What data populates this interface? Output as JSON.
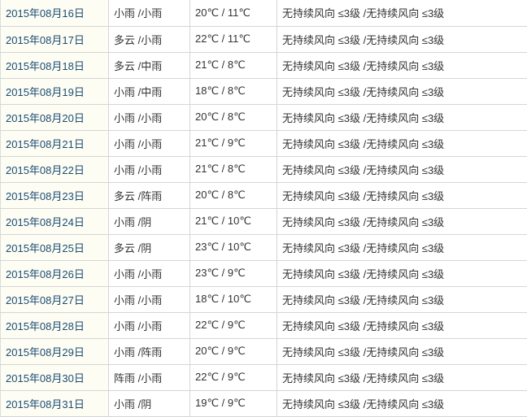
{
  "colors": {
    "date_link": "#1a4c72",
    "body_text": "#333333",
    "grid_border": "#d5d5d5",
    "date_cell_bg": "#fdfdf4"
  },
  "table": {
    "rows": [
      {
        "date": "2015年08月16日",
        "weather": "小雨 /小雨",
        "temp": "20℃ / 11℃",
        "wind": "无持续风向 ≤3级 /无持续风向 ≤3级"
      },
      {
        "date": "2015年08月17日",
        "weather": "多云 /小雨",
        "temp": "22℃ / 11℃",
        "wind": "无持续风向 ≤3级 /无持续风向 ≤3级"
      },
      {
        "date": "2015年08月18日",
        "weather": "多云 /中雨",
        "temp": "21℃ / 8℃",
        "wind": "无持续风向 ≤3级 /无持续风向 ≤3级"
      },
      {
        "date": "2015年08月19日",
        "weather": "小雨 /中雨",
        "temp": "18℃ / 8℃",
        "wind": "无持续风向 ≤3级 /无持续风向 ≤3级"
      },
      {
        "date": "2015年08月20日",
        "weather": "小雨 /小雨",
        "temp": "20℃ / 8℃",
        "wind": "无持续风向 ≤3级 /无持续风向 ≤3级"
      },
      {
        "date": "2015年08月21日",
        "weather": "小雨 /小雨",
        "temp": "21℃ / 9℃",
        "wind": "无持续风向 ≤3级 /无持续风向 ≤3级"
      },
      {
        "date": "2015年08月22日",
        "weather": "小雨 /小雨",
        "temp": "21℃ / 8℃",
        "wind": "无持续风向 ≤3级 /无持续风向 ≤3级"
      },
      {
        "date": "2015年08月23日",
        "weather": "多云 /阵雨",
        "temp": "20℃ / 8℃",
        "wind": "无持续风向 ≤3级 /无持续风向 ≤3级"
      },
      {
        "date": "2015年08月24日",
        "weather": "小雨 /阴",
        "temp": "21℃ / 10℃",
        "wind": "无持续风向 ≤3级 /无持续风向 ≤3级"
      },
      {
        "date": "2015年08月25日",
        "weather": "多云 /阴",
        "temp": "23℃ / 10℃",
        "wind": "无持续风向 ≤3级 /无持续风向 ≤3级"
      },
      {
        "date": "2015年08月26日",
        "weather": "小雨 /小雨",
        "temp": "23℃ / 9℃",
        "wind": "无持续风向 ≤3级 /无持续风向 ≤3级"
      },
      {
        "date": "2015年08月27日",
        "weather": "小雨 /小雨",
        "temp": "18℃ / 10℃",
        "wind": "无持续风向 ≤3级 /无持续风向 ≤3级"
      },
      {
        "date": "2015年08月28日",
        "weather": "小雨 /小雨",
        "temp": "22℃ / 9℃",
        "wind": "无持续风向 ≤3级 /无持续风向 ≤3级"
      },
      {
        "date": "2015年08月29日",
        "weather": "小雨 /阵雨",
        "temp": "20℃ / 9℃",
        "wind": "无持续风向 ≤3级 /无持续风向 ≤3级"
      },
      {
        "date": "2015年08月30日",
        "weather": "阵雨 /小雨",
        "temp": "22℃ / 9℃",
        "wind": "无持续风向 ≤3级 /无持续风向 ≤3级"
      },
      {
        "date": "2015年08月31日",
        "weather": "小雨 /阴",
        "temp": "19℃ / 9℃",
        "wind": "无持续风向 ≤3级 /无持续风向 ≤3级"
      }
    ]
  }
}
